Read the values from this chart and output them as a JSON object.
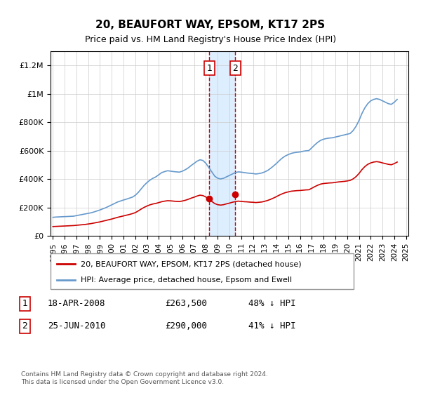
{
  "title": "20, BEAUFORT WAY, EPSOM, KT17 2PS",
  "subtitle": "Price paid vs. HM Land Registry's House Price Index (HPI)",
  "footnote": "Contains HM Land Registry data © Crown copyright and database right 2024.\nThis data is licensed under the Open Government Licence v3.0.",
  "legend_red": "20, BEAUFORT WAY, EPSOM, KT17 2PS (detached house)",
  "legend_blue": "HPI: Average price, detached house, Epsom and Ewell",
  "annotation1": {
    "label": "1",
    "date": "18-APR-2008",
    "price": "£263,500",
    "pct": "48% ↓ HPI",
    "x_year": 2008.3
  },
  "annotation2": {
    "label": "2",
    "date": "25-JUN-2010",
    "price": "£290,000",
    "pct": "41% ↓ HPI",
    "x_year": 2010.5
  },
  "red_color": "#cc0000",
  "blue_color": "#6699cc",
  "shading_color": "#ddeeff",
  "background_color": "#ffffff",
  "grid_color": "#cccccc",
  "ylim": [
    0,
    1300000
  ],
  "yticks": [
    0,
    200000,
    400000,
    600000,
    800000,
    1000000,
    1200000
  ],
  "ytick_labels": [
    "£0",
    "£200K",
    "£400K",
    "£600K",
    "£800K",
    "£1M",
    "£1.2M"
  ],
  "hpi_years": [
    1995,
    1995.25,
    1995.5,
    1995.75,
    1996,
    1996.25,
    1996.5,
    1996.75,
    1997,
    1997.25,
    1997.5,
    1997.75,
    1998,
    1998.25,
    1998.5,
    1998.75,
    1999,
    1999.25,
    1999.5,
    1999.75,
    2000,
    2000.25,
    2000.5,
    2000.75,
    2001,
    2001.25,
    2001.5,
    2001.75,
    2002,
    2002.25,
    2002.5,
    2002.75,
    2003,
    2003.25,
    2003.5,
    2003.75,
    2004,
    2004.25,
    2004.5,
    2004.75,
    2005,
    2005.25,
    2005.5,
    2005.75,
    2006,
    2006.25,
    2006.5,
    2006.75,
    2007,
    2007.25,
    2007.5,
    2007.75,
    2008,
    2008.25,
    2008.5,
    2008.75,
    2009,
    2009.25,
    2009.5,
    2009.75,
    2010,
    2010.25,
    2010.5,
    2010.75,
    2011,
    2011.25,
    2011.5,
    2011.75,
    2012,
    2012.25,
    2012.5,
    2012.75,
    2013,
    2013.25,
    2013.5,
    2013.75,
    2014,
    2014.25,
    2014.5,
    2014.75,
    2015,
    2015.25,
    2015.5,
    2015.75,
    2016,
    2016.25,
    2016.5,
    2016.75,
    2017,
    2017.25,
    2017.5,
    2017.75,
    2018,
    2018.25,
    2018.5,
    2018.75,
    2019,
    2019.25,
    2019.5,
    2019.75,
    2020,
    2020.25,
    2020.5,
    2020.75,
    2021,
    2021.25,
    2021.5,
    2021.75,
    2022,
    2022.25,
    2022.5,
    2022.75,
    2023,
    2023.25,
    2023.5,
    2023.75,
    2024,
    2024.25
  ],
  "hpi_values": [
    130000,
    132000,
    133000,
    134000,
    135000,
    136000,
    137000,
    138000,
    142000,
    146000,
    150000,
    154000,
    158000,
    162000,
    168000,
    175000,
    182000,
    190000,
    198000,
    208000,
    218000,
    228000,
    238000,
    245000,
    252000,
    258000,
    265000,
    272000,
    285000,
    305000,
    330000,
    355000,
    375000,
    392000,
    405000,
    415000,
    430000,
    445000,
    452000,
    458000,
    455000,
    452000,
    450000,
    448000,
    455000,
    465000,
    478000,
    495000,
    510000,
    525000,
    535000,
    530000,
    510000,
    480000,
    450000,
    420000,
    405000,
    400000,
    405000,
    415000,
    425000,
    435000,
    445000,
    450000,
    448000,
    445000,
    442000,
    440000,
    438000,
    435000,
    438000,
    442000,
    450000,
    460000,
    475000,
    492000,
    510000,
    530000,
    548000,
    562000,
    572000,
    580000,
    585000,
    588000,
    590000,
    595000,
    598000,
    600000,
    620000,
    640000,
    658000,
    672000,
    680000,
    685000,
    688000,
    690000,
    695000,
    700000,
    705000,
    710000,
    715000,
    720000,
    740000,
    770000,
    810000,
    860000,
    900000,
    930000,
    950000,
    960000,
    965000,
    960000,
    950000,
    940000,
    930000,
    925000,
    940000,
    960000
  ],
  "red_years": [
    1995,
    1995.25,
    1995.5,
    1995.75,
    1996,
    1996.25,
    1996.5,
    1996.75,
    1997,
    1997.25,
    1997.5,
    1997.75,
    1998,
    1998.25,
    1998.5,
    1998.75,
    1999,
    1999.25,
    1999.5,
    1999.75,
    2000,
    2000.25,
    2000.5,
    2000.75,
    2001,
    2001.25,
    2001.5,
    2001.75,
    2002,
    2002.25,
    2002.5,
    2002.75,
    2003,
    2003.25,
    2003.5,
    2003.75,
    2004,
    2004.25,
    2004.5,
    2004.75,
    2005,
    2005.25,
    2005.5,
    2005.75,
    2006,
    2006.25,
    2006.5,
    2006.75,
    2007,
    2007.25,
    2007.5,
    2007.75,
    2008,
    2008.25,
    2008.5,
    2008.75,
    2009,
    2009.25,
    2009.5,
    2009.75,
    2010,
    2010.25,
    2010.5,
    2010.75,
    2011,
    2011.25,
    2011.5,
    2011.75,
    2012,
    2012.25,
    2012.5,
    2012.75,
    2013,
    2013.25,
    2013.5,
    2013.75,
    2014,
    2014.25,
    2014.5,
    2014.75,
    2015,
    2015.25,
    2015.5,
    2015.75,
    2016,
    2016.25,
    2016.5,
    2016.75,
    2017,
    2017.25,
    2017.5,
    2017.75,
    2018,
    2018.25,
    2018.5,
    2018.75,
    2019,
    2019.25,
    2019.5,
    2019.75,
    2020,
    2020.25,
    2020.5,
    2020.75,
    2021,
    2021.25,
    2021.5,
    2021.75,
    2022,
    2022.25,
    2022.5,
    2022.75,
    2023,
    2023.25,
    2023.5,
    2023.75,
    2024,
    2024.25
  ],
  "red_values": [
    65000,
    66000,
    67000,
    68000,
    69000,
    70000,
    71000,
    72000,
    74000,
    76000,
    78000,
    80000,
    83000,
    86000,
    90000,
    94000,
    98000,
    103000,
    108000,
    113000,
    118000,
    124000,
    130000,
    135000,
    140000,
    145000,
    150000,
    156000,
    163000,
    175000,
    188000,
    200000,
    210000,
    218000,
    224000,
    228000,
    234000,
    240000,
    244000,
    247000,
    246000,
    244000,
    242000,
    241000,
    245000,
    250000,
    257000,
    265000,
    272000,
    280000,
    286000,
    283000,
    273000,
    258000,
    242000,
    227000,
    219000,
    216000,
    219000,
    225000,
    230000,
    236000,
    241000,
    244000,
    242000,
    240000,
    239000,
    237000,
    236000,
    234000,
    236000,
    238000,
    243000,
    249000,
    257000,
    266000,
    276000,
    287000,
    296000,
    304000,
    309000,
    314000,
    316000,
    318000,
    319000,
    321000,
    323000,
    324000,
    335000,
    346000,
    356000,
    364000,
    368000,
    370000,
    372000,
    373000,
    376000,
    379000,
    381000,
    383000,
    386000,
    390000,
    400000,
    416000,
    438000,
    465000,
    487000,
    503000,
    513000,
    519000,
    522000,
    519000,
    513000,
    508000,
    503000,
    500000,
    508000,
    519000
  ],
  "sale1_year": 2008.3,
  "sale1_value": 263500,
  "sale2_year": 2010.5,
  "sale2_value": 290000,
  "xtick_years": [
    1995,
    1996,
    1997,
    1998,
    1999,
    2000,
    2001,
    2002,
    2003,
    2004,
    2005,
    2006,
    2007,
    2008,
    2009,
    2010,
    2011,
    2012,
    2013,
    2014,
    2015,
    2016,
    2017,
    2018,
    2019,
    2020,
    2021,
    2022,
    2023,
    2024,
    2025
  ]
}
